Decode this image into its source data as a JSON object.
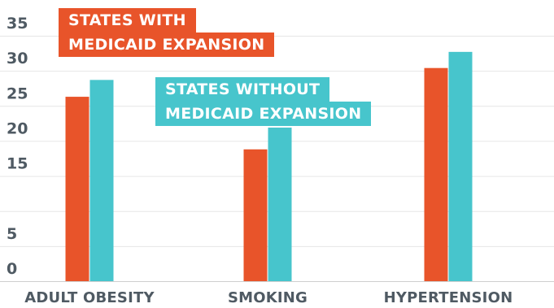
{
  "chart_data": {
    "type": "bar",
    "categories": [
      "ADULT OBESITY",
      "SMOKING",
      "HYPERTENSION"
    ],
    "series": [
      {
        "name": "STATES WITH MEDICAID EXPANSION",
        "values": [
          26.3,
          18.8,
          30.4
        ],
        "color": "#e8542a"
      },
      {
        "name": "STATES WITHOUT MEDICAID EXPANSION",
        "values": [
          28.7,
          21.9,
          32.7
        ],
        "color": "#47c5cc"
      }
    ],
    "legend_lines": {
      "with": [
        "STATES WITH",
        "MEDICAID EXPANSION"
      ],
      "without": [
        "STATES WITHOUT",
        "MEDICAID EXPANSION"
      ]
    },
    "ylim": [
      0,
      35
    ],
    "yticks": [
      0,
      5,
      15,
      20,
      25,
      30,
      35
    ],
    "grid": true,
    "title": "",
    "xlabel": "",
    "ylabel": ""
  }
}
